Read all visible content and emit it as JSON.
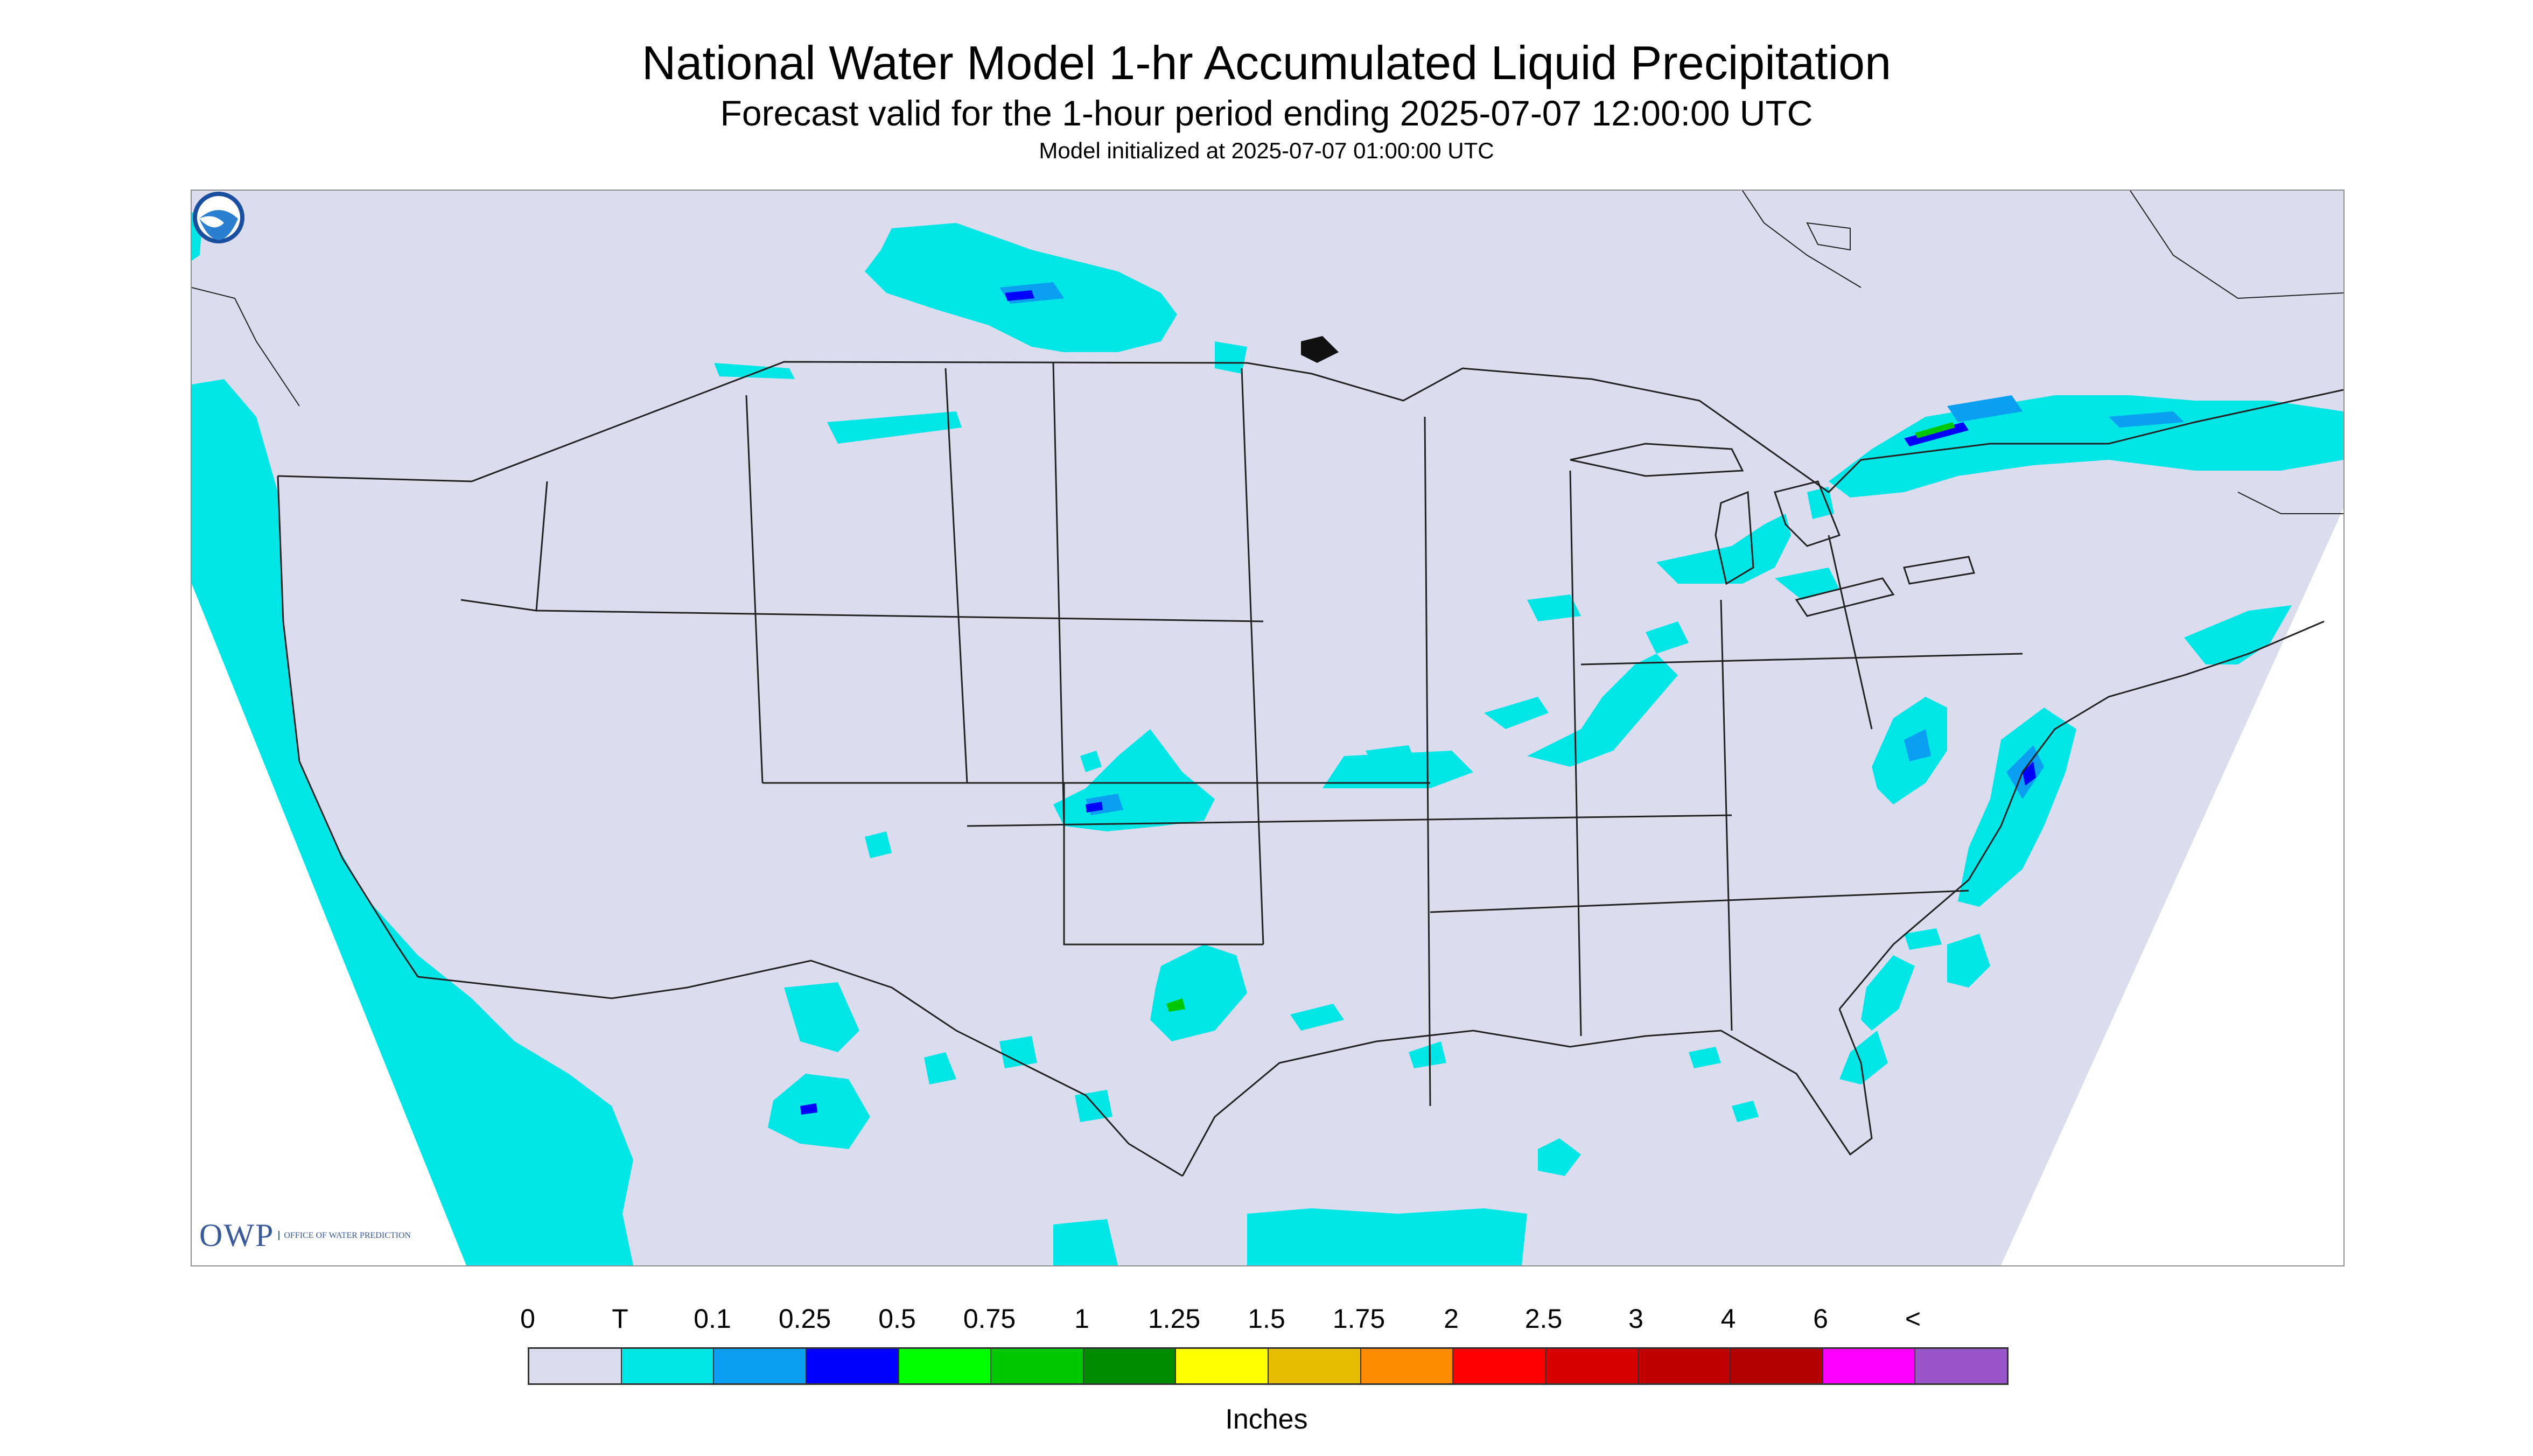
{
  "title": "National Water Model 1-hr Accumulated Liquid Precipitation",
  "subtitle": "Forecast valid for the 1-hour period ending 2025-07-07 12:00:00 UTC",
  "init_text": "Model initialized at 2025-07-07 01:00:00 UTC",
  "logos": {
    "owp_mark": "OWP",
    "owp_full": "OFFICE OF WATER PREDICTION",
    "noaa": "NOAA"
  },
  "legend": {
    "unit": "Inches",
    "labels": [
      "0",
      "T",
      "0.1",
      "0.25",
      "0.5",
      "0.75",
      "1",
      "1.25",
      "1.5",
      "1.75",
      "2",
      "2.5",
      "3",
      "4",
      "6",
      "<"
    ],
    "colors": [
      "#dcdcef",
      "#00e5e5",
      "#0a9ff0",
      "#0000ff",
      "#00ff00",
      "#00c800",
      "#008c00",
      "#ffff00",
      "#e5bc00",
      "#ff8c00",
      "#ff0000",
      "#d80000",
      "#c00000",
      "#b40000",
      "#ff00ff",
      "#9955c9"
    ]
  },
  "colors": {
    "domain": "#dcdcef",
    "trace": "#00e5e5",
    "light": "#0a9ff0",
    "moderate": "#0000ff",
    "heavy": "#00c800",
    "boundary": "#222222"
  }
}
